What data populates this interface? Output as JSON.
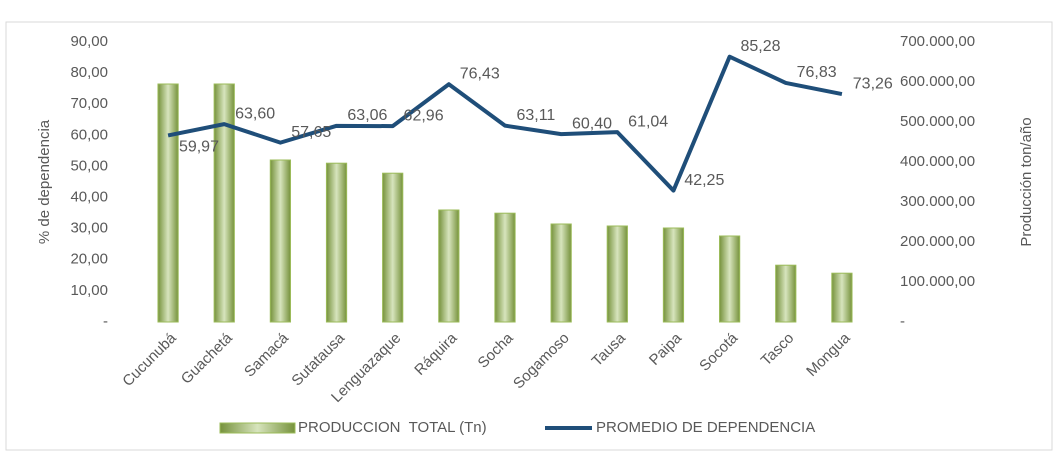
{
  "chart_data": {
    "type": "bar-line",
    "categories": [
      "Cucunubá",
      "Guachetá",
      "Samacá",
      "Sutatausa",
      "Lenguazaque",
      "Ráquira",
      "Socha",
      "Sogamoso",
      "Tausa",
      "Paipa",
      "Socotá",
      "Tasco",
      "Mongua"
    ],
    "series": [
      {
        "name": "PRODUCCION  TOTAL (Tn)",
        "type": "bar",
        "axis": "y2",
        "color": "#9bbb59",
        "values": [
          595000,
          595000,
          405000,
          397000,
          372000,
          280000,
          272000,
          245000,
          240000,
          235000,
          215000,
          142000,
          122000
        ]
      },
      {
        "name": "PROMEDIO DE DEPENDENCIA",
        "type": "line",
        "axis": "y",
        "color": "#1f4e79",
        "values": [
          59.97,
          63.6,
          57.65,
          63.06,
          62.96,
          76.43,
          63.11,
          60.4,
          61.04,
          42.25,
          85.28,
          76.83,
          73.26
        ],
        "value_labels": [
          "59,97",
          "63,60",
          "57,65",
          "63,06",
          "62,96",
          "76,43",
          "63,11",
          "60,40",
          "61,04",
          "42,25",
          "85,28",
          "76,83",
          "73,26"
        ]
      }
    ],
    "ylabel": "% de dependencia",
    "y2label": "Producción ton/año",
    "ylim": [
      0,
      90
    ],
    "yticks": [
      {
        "value": 0,
        "label": "-"
      },
      {
        "value": 10,
        "label": "10,00"
      },
      {
        "value": 20,
        "label": "20,00"
      },
      {
        "value": 30,
        "label": "30,00"
      },
      {
        "value": 40,
        "label": "40,00"
      },
      {
        "value": 50,
        "label": "50,00"
      },
      {
        "value": 60,
        "label": "60,00"
      },
      {
        "value": 70,
        "label": "70,00"
      },
      {
        "value": 80,
        "label": "80,00"
      },
      {
        "value": 90,
        "label": "90,00"
      }
    ],
    "y2lim": [
      0,
      700000
    ],
    "y2ticks": [
      {
        "value": 0,
        "label": "-"
      },
      {
        "value": 100000,
        "label": "100.000,00"
      },
      {
        "value": 200000,
        "label": "200.000,00"
      },
      {
        "value": 300000,
        "label": "300.000,00"
      },
      {
        "value": 400000,
        "label": "400.000,00"
      },
      {
        "value": 500000,
        "label": "500.000,00"
      },
      {
        "value": 600000,
        "label": "600.000,00"
      },
      {
        "value": 700000,
        "label": "700.000,00"
      }
    ],
    "legend": "bottom"
  }
}
